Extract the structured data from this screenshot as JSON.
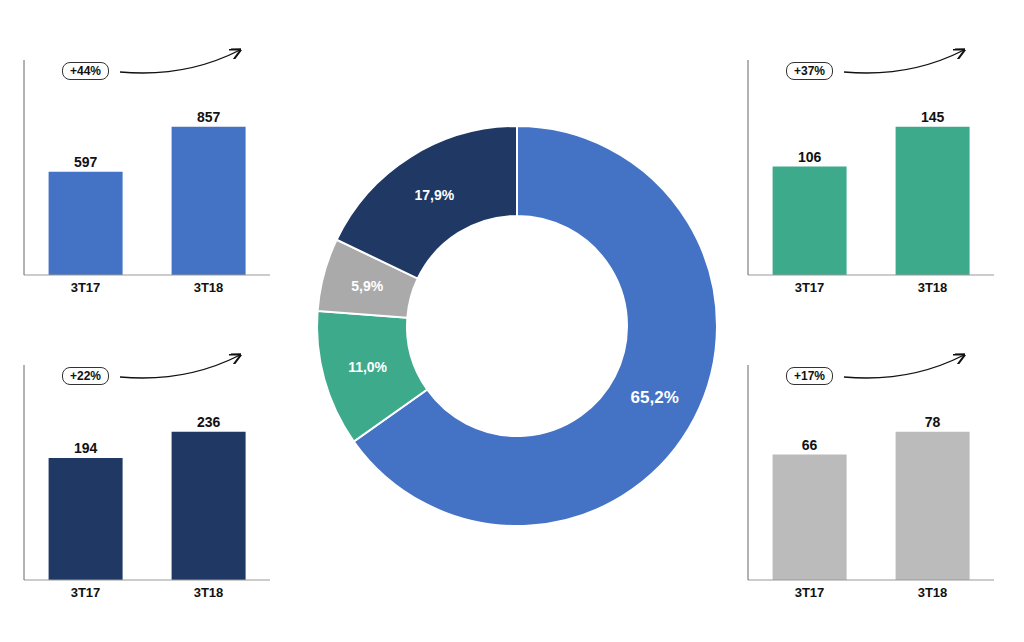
{
  "chart_data": [
    {
      "type": "pie",
      "values": [
        65.2,
        11.0,
        5.9,
        17.9
      ],
      "value_labels": [
        "65,2%",
        "11,0%",
        "5,9%",
        "17,9%"
      ],
      "colors": [
        "#4472C4",
        "#3DAA8C",
        "#AAAAAA",
        "#1F3864"
      ],
      "data_labels": true
    },
    {
      "type": "bar",
      "categories": [
        "3T17",
        "3T18"
      ],
      "values": [
        597,
        857
      ],
      "color": "#4472C4",
      "ylim": [
        0,
        1242.65
      ],
      "data_labels": true,
      "tick_labels": "x",
      "grid": false,
      "annotations": [
        "+44%"
      ]
    },
    {
      "type": "bar",
      "categories": [
        "3T17",
        "3T18"
      ],
      "values": [
        194,
        236
      ],
      "color": "#1F3864",
      "ylim": [
        0,
        342.2
      ],
      "data_labels": true,
      "tick_labels": "x",
      "grid": false,
      "annotations": [
        "+22%"
      ]
    },
    {
      "type": "bar",
      "categories": [
        "3T17",
        "3T18"
      ],
      "values": [
        106,
        145
      ],
      "color": "#3DAA8C",
      "ylim": [
        0,
        210.25
      ],
      "data_labels": true,
      "tick_labels": "x",
      "grid": false,
      "annotations": [
        "+37%"
      ]
    },
    {
      "type": "bar",
      "categories": [
        "3T17",
        "3T18"
      ],
      "values": [
        66,
        78
      ],
      "color": "#BBBBBB",
      "ylim": [
        0,
        113.1
      ],
      "data_labels": true,
      "tick_labels": "x",
      "grid": false,
      "annotations": [
        "+17%"
      ]
    }
  ]
}
